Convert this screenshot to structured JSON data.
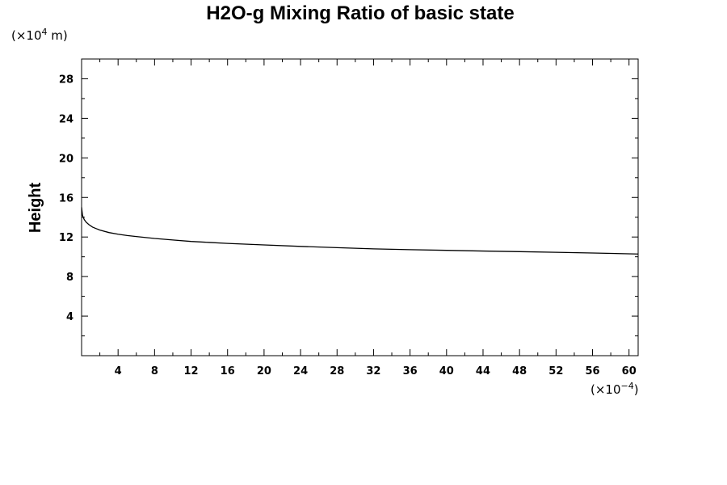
{
  "chart_data": {
    "type": "line",
    "title": "H2O-g Mixing Ratio of basic state",
    "xlabel": "",
    "ylabel": "Height",
    "x_scale_prefix": "(×10",
    "x_scale_exp": "−4",
    "x_scale_suffix": ")",
    "y_scale_prefix": "(×10",
    "y_scale_exp": "4",
    "y_scale_suffix": " m)",
    "xlim": [
      0,
      61
    ],
    "ylim": [
      0,
      30
    ],
    "x_ticks": [
      4,
      8,
      12,
      16,
      20,
      24,
      28,
      32,
      36,
      40,
      44,
      48,
      52,
      56,
      60
    ],
    "y_ticks": [
      4,
      8,
      12,
      16,
      20,
      24,
      28
    ],
    "x_minor_step": 2,
    "y_minor_step": 2,
    "grid": false,
    "series": [
      {
        "x": [
          0.0,
          0.05,
          0.1,
          0.2,
          0.3,
          0.5,
          0.8,
          1.2,
          1.6,
          2,
          3,
          4,
          5,
          6,
          8,
          10,
          12,
          14,
          16,
          20,
          24,
          28,
          32,
          36,
          40,
          44,
          48,
          52,
          56,
          61
        ],
        "y": [
          15.0,
          14.6,
          14.2,
          13.95,
          13.75,
          13.5,
          13.25,
          13.0,
          12.85,
          12.7,
          12.45,
          12.28,
          12.15,
          12.05,
          11.85,
          11.7,
          11.55,
          11.45,
          11.35,
          11.2,
          11.05,
          10.92,
          10.8,
          10.72,
          10.65,
          10.58,
          10.52,
          10.45,
          10.38,
          10.28
        ]
      }
    ]
  }
}
